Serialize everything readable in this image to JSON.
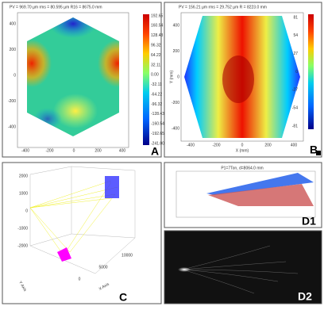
{
  "panels": {
    "a": {
      "header": "PV = 969.70 µm    rms = 80.595 µm    R16 = 8675.0 mm",
      "colorbar_ticks": [
        "192.65",
        "160.54",
        "128.43",
        "96.32",
        "64.22",
        "32.11",
        "0.00",
        "-32.11",
        "-64.22",
        "-96.32",
        "-128.43",
        "-160.54",
        "-192.65",
        "-241.00"
      ],
      "y_ticks": [
        "400",
        "200",
        "0",
        "-200",
        "-400"
      ],
      "x_ticks": [
        "-400",
        "-200",
        "0",
        "200",
        "400"
      ],
      "label": "A"
    },
    "b": {
      "header": "PV = 156.21 µm    rms = 29.752 µm    R = 8223.0 mm",
      "colorbar_ticks": [
        "81",
        "54",
        "27",
        "0",
        "-27",
        "-54",
        "-81"
      ],
      "y_ticks": [
        "400",
        "200",
        "0",
        "-200",
        "-400"
      ],
      "x_ticks": [
        "-400",
        "-200",
        "0",
        "200",
        "400"
      ],
      "y_label": "Y (mm)",
      "x_label": "X (mm)",
      "label": "B"
    },
    "c": {
      "z_ticks": [
        "2000",
        "1000",
        "0",
        "-1000",
        "-2000"
      ],
      "y_label": "Y Axis",
      "x_label": "X Axis",
      "x_ticks": [
        "0",
        "5000",
        "10000"
      ],
      "label": "C"
    },
    "d1": {
      "header": "P1=7Ton, d=8064.0 mm",
      "label": "D1"
    },
    "d2": {
      "label": "D2"
    }
  }
}
